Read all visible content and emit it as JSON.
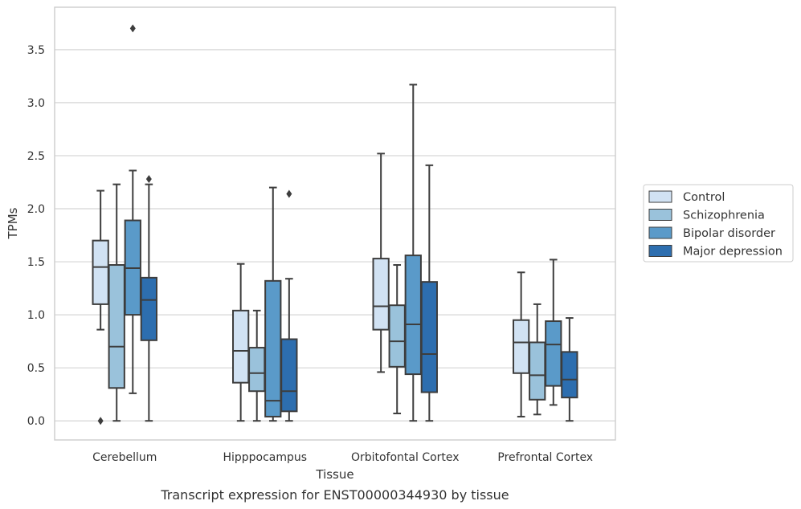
{
  "chart_data": {
    "type": "box",
    "xlabel": "Tissue",
    "ylabel": "TPMs",
    "caption": "Transcript expression for ENST00000344930 by tissue",
    "ylim": [
      -0.18,
      3.9
    ],
    "yticks": [
      "0.0",
      "0.5",
      "1.0",
      "1.5",
      "2.0",
      "2.5",
      "3.0",
      "3.5"
    ],
    "grid": "horizontal",
    "legend_position": "right",
    "categories": [
      "Cerebellum",
      "Hipppocampus",
      "Orbitofontal Cortex",
      "Prefrontal Cortex"
    ],
    "series": [
      {
        "name": "Control",
        "color": "#d1e2f3",
        "boxes": [
          {
            "whislo": 0.86,
            "q1": 1.1,
            "med": 1.45,
            "q3": 1.7,
            "whishi": 2.17,
            "fliers": [
              0.0
            ]
          },
          {
            "whislo": 0.0,
            "q1": 0.36,
            "med": 0.66,
            "q3": 1.04,
            "whishi": 1.48,
            "fliers": []
          },
          {
            "whislo": 0.46,
            "q1": 0.86,
            "med": 1.08,
            "q3": 1.53,
            "whishi": 2.52,
            "fliers": []
          },
          {
            "whislo": 0.04,
            "q1": 0.45,
            "med": 0.74,
            "q3": 0.95,
            "whishi": 1.4,
            "fliers": []
          }
        ]
      },
      {
        "name": "Schizophrenia",
        "color": "#9ac2db",
        "boxes": [
          {
            "whislo": 0.0,
            "q1": 0.31,
            "med": 0.7,
            "q3": 1.47,
            "whishi": 2.23,
            "fliers": []
          },
          {
            "whislo": 0.0,
            "q1": 0.28,
            "med": 0.45,
            "q3": 0.69,
            "whishi": 1.04,
            "fliers": []
          },
          {
            "whislo": 0.07,
            "q1": 0.51,
            "med": 0.75,
            "q3": 1.09,
            "whishi": 1.47,
            "fliers": []
          },
          {
            "whislo": 0.06,
            "q1": 0.2,
            "med": 0.43,
            "q3": 0.74,
            "whishi": 1.1,
            "fliers": []
          }
        ]
      },
      {
        "name": "Bipolar disorder",
        "color": "#5a9ac9",
        "boxes": [
          {
            "whislo": 0.26,
            "q1": 1.0,
            "med": 1.44,
            "q3": 1.89,
            "whishi": 2.36,
            "fliers": [
              3.7
            ]
          },
          {
            "whislo": 0.0,
            "q1": 0.04,
            "med": 0.19,
            "q3": 1.32,
            "whishi": 2.2,
            "fliers": []
          },
          {
            "whislo": 0.0,
            "q1": 0.44,
            "med": 0.91,
            "q3": 1.56,
            "whishi": 3.17,
            "fliers": []
          },
          {
            "whislo": 0.15,
            "q1": 0.33,
            "med": 0.72,
            "q3": 0.94,
            "whishi": 1.52,
            "fliers": []
          }
        ]
      },
      {
        "name": "Major depression",
        "color": "#2d6eaf",
        "boxes": [
          {
            "whislo": 0.0,
            "q1": 0.76,
            "med": 1.14,
            "q3": 1.35,
            "whishi": 2.23,
            "fliers": [
              2.28
            ]
          },
          {
            "whislo": 0.0,
            "q1": 0.09,
            "med": 0.28,
            "q3": 0.77,
            "whishi": 1.34,
            "fliers": [
              2.14
            ]
          },
          {
            "whislo": 0.0,
            "q1": 0.27,
            "med": 0.63,
            "q3": 1.31,
            "whishi": 2.41,
            "fliers": []
          },
          {
            "whislo": 0.0,
            "q1": 0.22,
            "med": 0.39,
            "q3": 0.65,
            "whishi": 0.97,
            "fliers": []
          }
        ]
      }
    ]
  }
}
